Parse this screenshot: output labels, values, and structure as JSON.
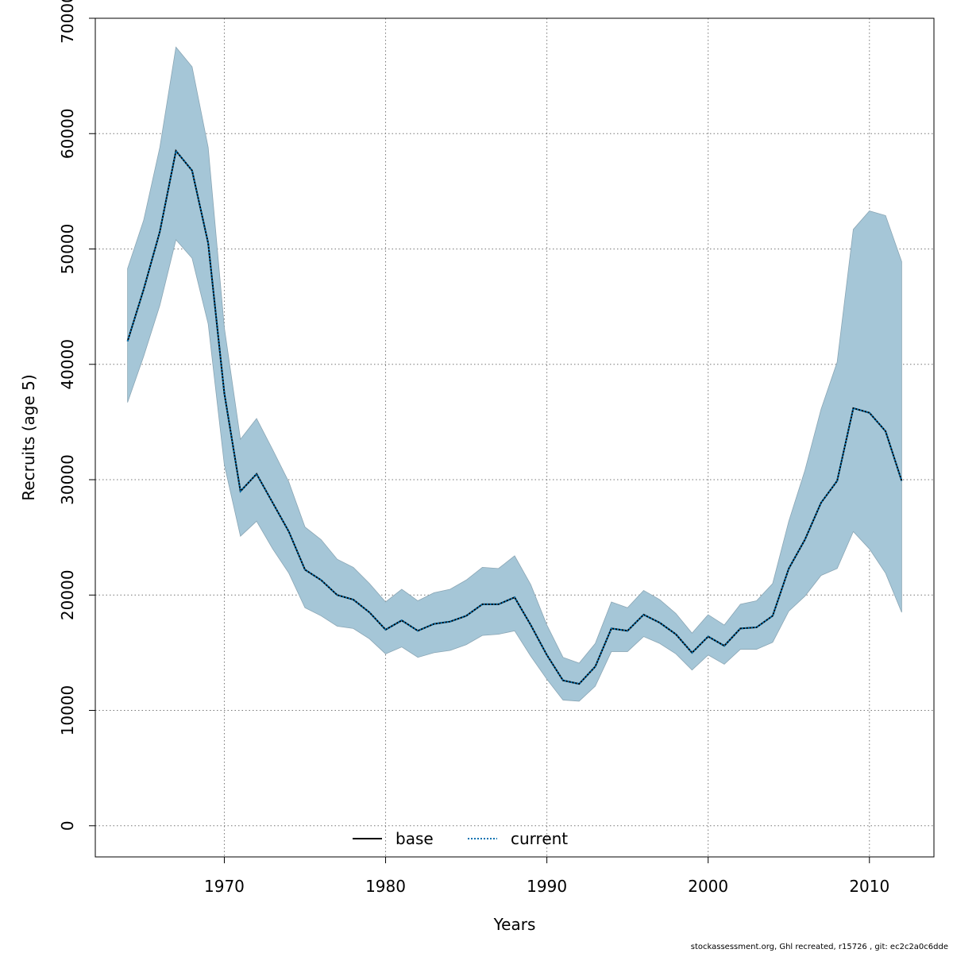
{
  "chart_data": {
    "type": "area",
    "xlabel": "Years",
    "ylabel": "Recruits (age 5)",
    "xlim": [
      1962,
      2014
    ],
    "ylim": [
      -2700,
      70000
    ],
    "xticks": [
      1970,
      1980,
      1990,
      2000,
      2010
    ],
    "yticks": [
      0,
      10000,
      20000,
      30000,
      40000,
      50000,
      60000,
      70000
    ],
    "grid": true,
    "legend_position": "bottom-center",
    "legend": [
      {
        "label": "base",
        "style": "solid",
        "color": "#000000"
      },
      {
        "label": "current",
        "style": "dotted",
        "color": "#0072B2"
      }
    ],
    "band_color": "#a5c6d7",
    "x": [
      1964,
      1965,
      1966,
      1967,
      1968,
      1969,
      1970,
      1971,
      1972,
      1973,
      1974,
      1975,
      1976,
      1977,
      1978,
      1979,
      1980,
      1981,
      1982,
      1983,
      1984,
      1985,
      1986,
      1987,
      1988,
      1989,
      1990,
      1991,
      1992,
      1993,
      1994,
      1995,
      1996,
      1997,
      1998,
      1999,
      2000,
      2001,
      2002,
      2003,
      2004,
      2005,
      2006,
      2007,
      2008,
      2009,
      2010,
      2011,
      2012
    ],
    "series": [
      {
        "name": "base",
        "values": [
          42000,
          46500,
          51500,
          58500,
          56800,
          50500,
          37500,
          29000,
          30500,
          28000,
          25500,
          22200,
          21300,
          20000,
          19600,
          18500,
          17000,
          17800,
          16900,
          17500,
          17700,
          18200,
          19200,
          19200,
          19800,
          17400,
          14800,
          12600,
          12300,
          13800,
          17100,
          16900,
          18300,
          17600,
          16600,
          15000,
          16400,
          15600,
          17100,
          17200,
          18200,
          22300,
          24800,
          28000,
          29900,
          36200,
          35800,
          34200,
          29900
        ]
      },
      {
        "name": "current",
        "values": [
          42000,
          46500,
          51500,
          58500,
          56800,
          50500,
          37500,
          29000,
          30500,
          28000,
          25500,
          22200,
          21300,
          20000,
          19600,
          18500,
          17000,
          17800,
          16900,
          17500,
          17700,
          18200,
          19200,
          19200,
          19800,
          17400,
          14800,
          12600,
          12300,
          13800,
          17100,
          16900,
          18300,
          17600,
          16600,
          15000,
          16400,
          15600,
          17100,
          17200,
          18200,
          22300,
          24800,
          28000,
          29900,
          36200,
          35800,
          34200,
          29900
        ]
      }
    ],
    "band_lower": [
      36700,
      40700,
      45100,
      50800,
      49200,
      43500,
      31300,
      25100,
      26400,
      24000,
      21900,
      18900,
      18200,
      17300,
      17100,
      16200,
      14900,
      15500,
      14600,
      15000,
      15200,
      15700,
      16500,
      16600,
      16900,
      14700,
      12700,
      10900,
      10800,
      12100,
      15100,
      15100,
      16400,
      15800,
      14900,
      13500,
      14800,
      14000,
      15300,
      15300,
      15900,
      18600,
      19900,
      21700,
      22300,
      25500,
      24000,
      21900,
      18500
    ],
    "band_upper": [
      48300,
      52500,
      58800,
      67500,
      65800,
      58800,
      43200,
      33500,
      35300,
      32600,
      29800,
      25900,
      24800,
      23100,
      22400,
      21000,
      19400,
      20500,
      19500,
      20200,
      20500,
      21300,
      22400,
      22300,
      23400,
      20900,
      17400,
      14600,
      14100,
      15800,
      19400,
      18900,
      20400,
      19600,
      18400,
      16700,
      18300,
      17400,
      19200,
      19500,
      21000,
      26400,
      30800,
      36100,
      40200,
      51700,
      53300,
      52900,
      48900
    ]
  },
  "footer": "stockassessment.org, Ghl  recreated, r15726 , git: ec2c2a0c6dde"
}
